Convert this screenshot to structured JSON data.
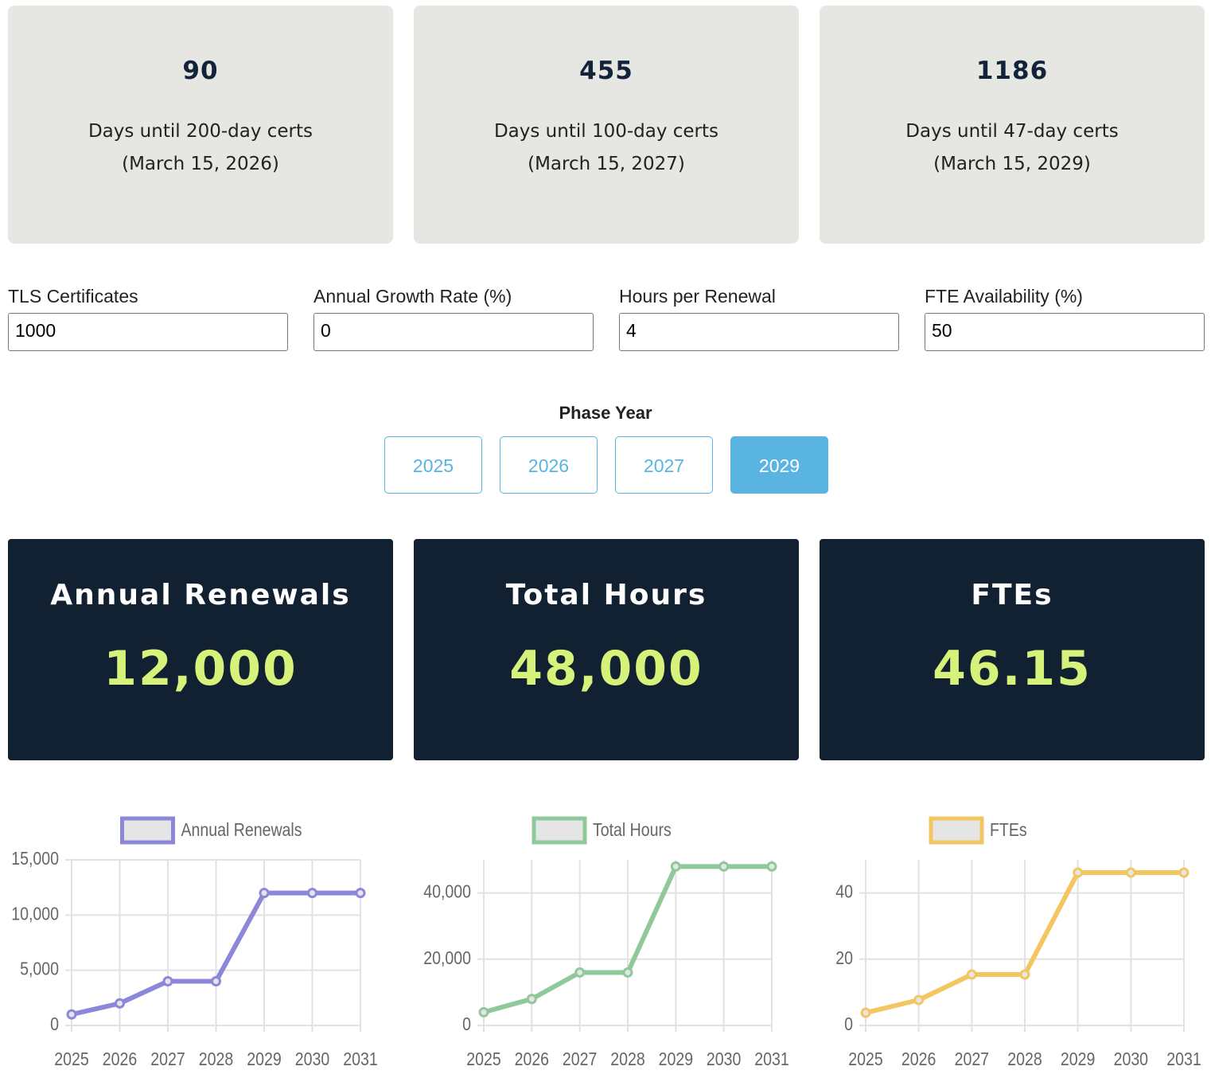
{
  "countdowns": [
    {
      "days": "90",
      "label": "Days until 200-day certs",
      "date": "(March 15, 2026)"
    },
    {
      "days": "455",
      "label": "Days until 100-day certs",
      "date": "(March 15, 2027)"
    },
    {
      "days": "1186",
      "label": "Days until 47-day certs",
      "date": "(March 15, 2029)"
    }
  ],
  "inputs": [
    {
      "label": "TLS Certificates",
      "value": "1000"
    },
    {
      "label": "Annual Growth Rate (%)",
      "value": "0"
    },
    {
      "label": "Hours per Renewal",
      "value": "4"
    },
    {
      "label": "FTE Availability (%)",
      "value": "50"
    }
  ],
  "phase": {
    "label": "Phase Year",
    "options": [
      "2025",
      "2026",
      "2027",
      "2029"
    ],
    "selected": 3
  },
  "results": [
    {
      "title": "Annual Renewals",
      "value": "12,000"
    },
    {
      "title": "Total Hours",
      "value": "48,000"
    },
    {
      "title": "FTEs",
      "value": "46.15"
    }
  ],
  "chart_data": [
    {
      "type": "line",
      "categories": [
        "2025",
        "2026",
        "2027",
        "2028",
        "2029",
        "2030",
        "2031"
      ],
      "series": [
        {
          "name": "Annual Renewals",
          "color": "#8c87d8",
          "values": [
            1000,
            2000,
            4000,
            4000,
            12000,
            12000,
            12000
          ]
        }
      ],
      "ylim": [
        0,
        15000
      ],
      "yticks": [
        0,
        {
          "value": 5000,
          "label": "5,000"
        },
        {
          "value": 10000,
          "label": "10,000"
        },
        {
          "value": 15000,
          "label": "15,000"
        }
      ],
      "grid": true
    },
    {
      "type": "line",
      "categories": [
        "2025",
        "2026",
        "2027",
        "2028",
        "2029",
        "2030",
        "2031"
      ],
      "series": [
        {
          "name": "Total Hours",
          "color": "#8fc99b",
          "values": [
            4000,
            8000,
            16000,
            16000,
            48000,
            48000,
            48000
          ]
        }
      ],
      "ylim": [
        0,
        50000
      ],
      "yticks": [
        0,
        {
          "value": 20000,
          "label": "20,000"
        },
        {
          "value": 40000,
          "label": "40,000"
        }
      ],
      "grid": true
    },
    {
      "type": "line",
      "categories": [
        "2025",
        "2026",
        "2027",
        "2028",
        "2029",
        "2030",
        "2031"
      ],
      "series": [
        {
          "name": "FTEs",
          "color": "#f4c662",
          "values": [
            3.85,
            7.69,
            15.38,
            15.38,
            46.15,
            46.15,
            46.15
          ]
        }
      ],
      "ylim": [
        0,
        50
      ],
      "yticks": [
        0,
        20,
        40
      ],
      "grid": true
    }
  ]
}
